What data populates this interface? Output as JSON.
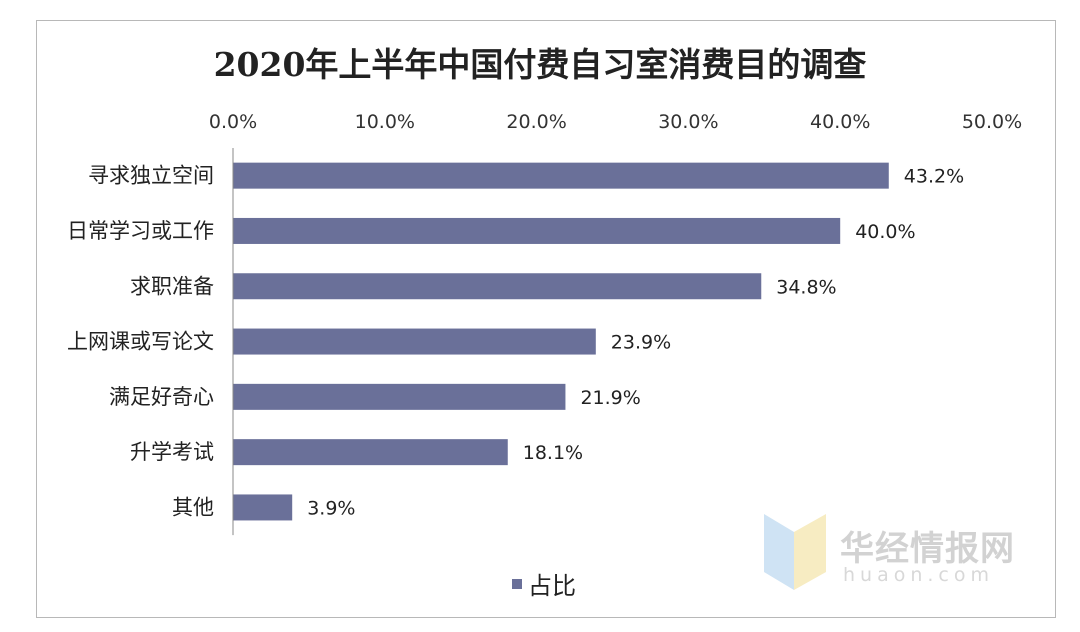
{
  "chart_data": {
    "type": "bar",
    "orientation": "horizontal",
    "title": "2020年上半年中国付费自习室消费目的调查",
    "categories": [
      "寻求独立空间",
      "日常学习或工作",
      "求职准备",
      "上网课或写论文",
      "满足好奇心",
      "升学考试",
      "其他"
    ],
    "series": [
      {
        "name": "占比",
        "values": [
          43.2,
          40.0,
          34.8,
          23.9,
          21.9,
          18.1,
          3.9
        ],
        "color": "#6a7099"
      }
    ],
    "data_labels": [
      "43.2%",
      "40.0%",
      "34.8%",
      "23.9%",
      "21.9%",
      "18.1%",
      "3.9%"
    ],
    "xlim": [
      0,
      50
    ],
    "x_ticks": [
      "0.0%",
      "10.0%",
      "20.0%",
      "30.0%",
      "40.0%",
      "50.0%"
    ],
    "x_axis_position": "top",
    "grid": false,
    "legend_position": "bottom"
  },
  "watermark": {
    "brand": "华经情报网",
    "domain": "huaon.com"
  }
}
